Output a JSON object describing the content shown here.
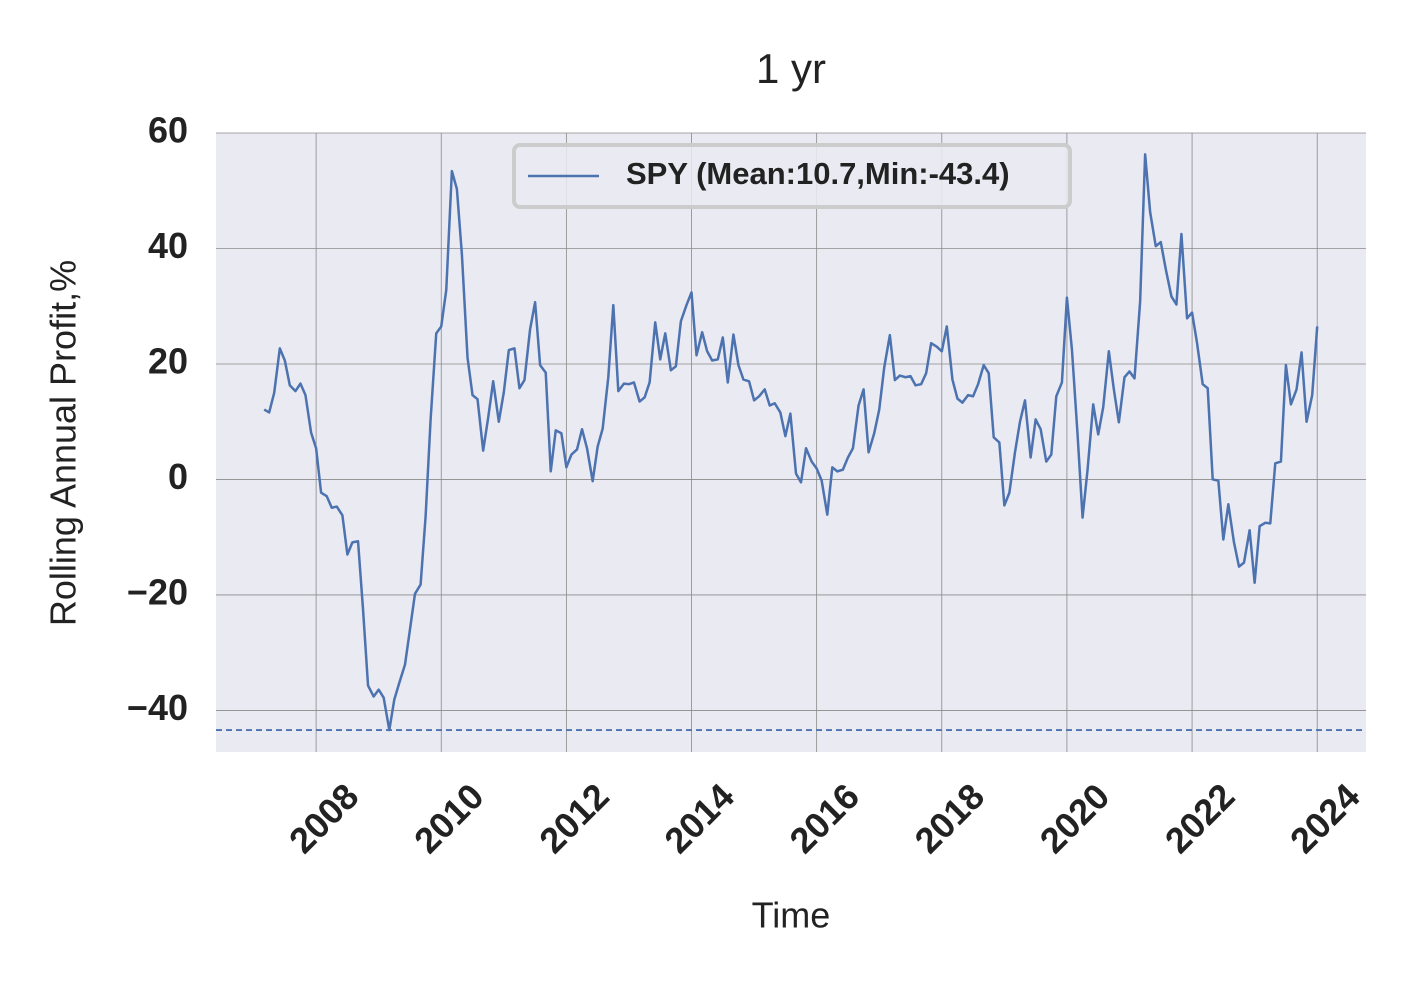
{
  "chart_data": {
    "type": "line",
    "title": "1 yr",
    "xlabel": "Time",
    "ylabel": "Rolling Annual Profit,%",
    "x": [
      2007.17,
      2007.25,
      2007.33,
      2007.42,
      2007.5,
      2007.58,
      2007.67,
      2007.75,
      2007.83,
      2007.92,
      2008,
      2008.08,
      2008.17,
      2008.25,
      2008.33,
      2008.42,
      2008.5,
      2008.58,
      2008.67,
      2008.75,
      2008.83,
      2008.92,
      2009,
      2009.08,
      2009.17,
      2009.25,
      2009.33,
      2009.42,
      2009.5,
      2009.58,
      2009.67,
      2009.75,
      2009.83,
      2009.92,
      2010,
      2010.08,
      2010.17,
      2010.25,
      2010.33,
      2010.42,
      2010.5,
      2010.58,
      2010.67,
      2010.75,
      2010.83,
      2010.92,
      2011,
      2011.08,
      2011.17,
      2011.25,
      2011.33,
      2011.42,
      2011.5,
      2011.58,
      2011.67,
      2011.75,
      2011.83,
      2011.92,
      2012,
      2012.08,
      2012.17,
      2012.25,
      2012.33,
      2012.42,
      2012.5,
      2012.58,
      2012.67,
      2012.75,
      2012.83,
      2012.92,
      2013,
      2013.08,
      2013.17,
      2013.25,
      2013.33,
      2013.42,
      2013.5,
      2013.58,
      2013.67,
      2013.75,
      2013.83,
      2013.92,
      2014,
      2014.08,
      2014.17,
      2014.25,
      2014.33,
      2014.42,
      2014.5,
      2014.58,
      2014.67,
      2014.75,
      2014.83,
      2014.92,
      2015,
      2015.08,
      2015.17,
      2015.25,
      2015.33,
      2015.42,
      2015.5,
      2015.58,
      2015.67,
      2015.75,
      2015.83,
      2015.92,
      2016,
      2016.08,
      2016.17,
      2016.25,
      2016.33,
      2016.42,
      2016.5,
      2016.58,
      2016.67,
      2016.75,
      2016.83,
      2016.92,
      2017,
      2017.08,
      2017.17,
      2017.25,
      2017.33,
      2017.42,
      2017.5,
      2017.58,
      2017.67,
      2017.75,
      2017.83,
      2017.92,
      2018,
      2018.08,
      2018.17,
      2018.25,
      2018.33,
      2018.42,
      2018.5,
      2018.58,
      2018.67,
      2018.75,
      2018.83,
      2018.92,
      2019,
      2019.08,
      2019.17,
      2019.25,
      2019.33,
      2019.42,
      2019.5,
      2019.58,
      2019.67,
      2019.75,
      2019.83,
      2019.92,
      2020,
      2020.08,
      2020.17,
      2020.25,
      2020.33,
      2020.42,
      2020.5,
      2020.58,
      2020.67,
      2020.75,
      2020.83,
      2020.92,
      2021,
      2021.08,
      2021.17,
      2021.25,
      2021.33,
      2021.42,
      2021.5,
      2021.58,
      2021.67,
      2021.75,
      2021.83,
      2021.92,
      2022,
      2022.08,
      2022.17,
      2022.25,
      2022.33,
      2022.42,
      2022.5,
      2022.58,
      2022.67,
      2022.75,
      2022.83,
      2022.92,
      2023,
      2023.08,
      2023.17,
      2023.25,
      2023.33,
      2023.42,
      2023.5,
      2023.58,
      2023.67,
      2023.75,
      2023.83,
      2023.92,
      2024
    ],
    "series": [
      {
        "name": "SPY (Mean:10.7,Min:-43.4)",
        "color": "#4c72b0",
        "values": [
          12.1,
          11.6,
          15,
          22.7,
          20.6,
          16.3,
          15.3,
          16.6,
          14.6,
          8.1,
          5.4,
          -2.3,
          -2.9,
          -4.9,
          -4.7,
          -6.2,
          -13,
          -10.9,
          -10.7,
          -22.5,
          -35.7,
          -37.6,
          -36.4,
          -37.8,
          -43.4,
          -38.1,
          -35.2,
          -32.1,
          -26,
          -19.8,
          -18.2,
          -6.4,
          10.4,
          25.3,
          26.5,
          32.8,
          53.4,
          50.3,
          39,
          21.1,
          14.6,
          13.9,
          5,
          10.7,
          17,
          10,
          15.1,
          22.4,
          22.7,
          15.8,
          17.2,
          26,
          30.7,
          19.8,
          18.5,
          1.4,
          8.5,
          8,
          2.1,
          4.3,
          5.2,
          8.7,
          5.4,
          -0.3,
          5.7,
          8.8,
          17.7,
          30.2,
          15.3,
          16.6,
          16.5,
          16.8,
          13.5,
          14.2,
          16.8,
          27.2,
          20.8,
          25.3,
          18.9,
          19.6,
          27.4,
          30.2,
          32.4,
          21.5,
          25.5,
          22.2,
          20.6,
          20.8,
          24.6,
          16.8,
          25.1,
          19.8,
          17.3,
          17,
          13.7,
          14.4,
          15.6,
          12.8,
          13.2,
          11.6,
          7.5,
          11.4,
          1,
          -0.5,
          5.4,
          3.1,
          1.9,
          -0.2,
          -6.1,
          2.1,
          1.4,
          1.7,
          3.8,
          5.4,
          12.8,
          15.6,
          4.7,
          8,
          12.1,
          19.4,
          25,
          17.2,
          18,
          17.7,
          17.9,
          16.3,
          16.5,
          18.4,
          23.6,
          23,
          22.2,
          26.5,
          17.3,
          14,
          13.3,
          14.6,
          14.4,
          16.5,
          19.8,
          18.4,
          7.3,
          6.4,
          -4.5,
          -2.3,
          4.7,
          10,
          13.7,
          3.8,
          10.4,
          8.7,
          3.1,
          4.3,
          14.4,
          16.8,
          31.5,
          22.5,
          7.8,
          -6.6,
          1.7,
          13,
          7.8,
          12.5,
          22.2,
          15.6,
          9.9,
          17.7,
          18.7,
          17.5,
          30.8,
          56.3,
          46.3,
          40.4,
          41.1,
          36.4,
          31.7,
          30.3,
          42.5,
          27.9,
          28.9,
          23.6,
          16.5,
          15.8,
          0,
          -0.2,
          -10.4,
          -4.3,
          -10.9,
          -15.1,
          -14.4,
          -8.8,
          -17.9,
          -8.1,
          -7.5,
          -7.6,
          2.8,
          3.1,
          19.8,
          13,
          15.6,
          22,
          10,
          14.6,
          26.5
        ]
      }
    ],
    "min_line": -43.4,
    "xlim": [
      2006.4,
      2024.78
    ],
    "xticks": [
      2008,
      2010,
      2012,
      2014,
      2016,
      2018,
      2020,
      2022,
      2024
    ],
    "ylim": [
      -47.2,
      60
    ],
    "yticks": [
      60,
      40,
      20,
      0,
      {
        "value": -20,
        "label": "−20"
      },
      {
        "value": -40,
        "label": "−40"
      }
    ],
    "grid": true,
    "legend": "upper center"
  }
}
